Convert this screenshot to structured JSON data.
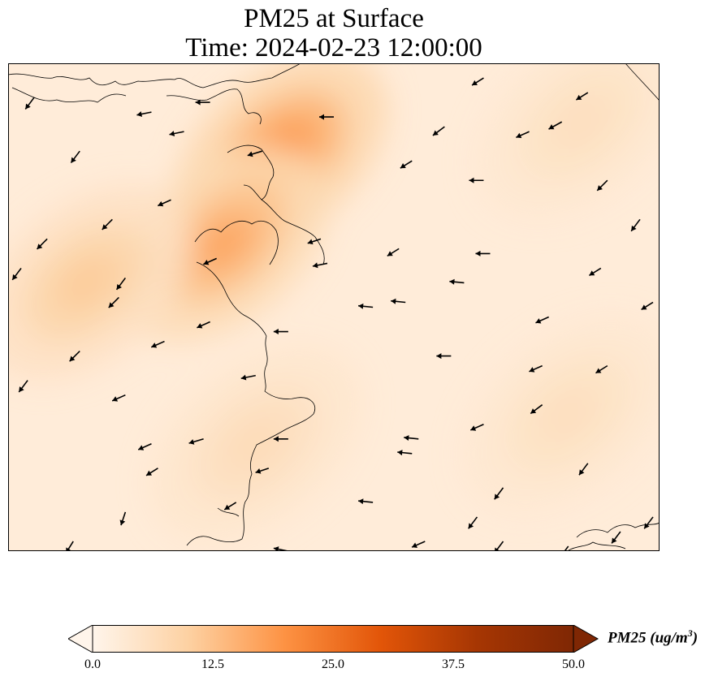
{
  "title": {
    "line1": "PM25 at Surface",
    "line2": "Time: 2024-02-23 12:00:00"
  },
  "colorbar": {
    "label_text": "PM25 (ug/m",
    "label_exp": "3",
    "label_close": ")",
    "ticks": [
      "0.0",
      "12.5",
      "25.0",
      "37.5",
      "50.0"
    ],
    "colors": [
      "#fff5eb",
      "#fdd1a2",
      "#fd9243",
      "#e25508",
      "#a63603",
      "#7f2704"
    ],
    "vmin": 0,
    "vmax": 50,
    "extend": "both"
  },
  "map": {
    "variable": "PM25",
    "level": "Surface",
    "hotspots": [
      {
        "lon": 0.42,
        "lat": 0.18,
        "value": 20
      },
      {
        "lon": 0.33,
        "lat": 0.37,
        "value": 17
      },
      {
        "lon": 0.12,
        "lat": 0.45,
        "value": 11
      },
      {
        "lon": 0.38,
        "lat": 0.78,
        "value": 7
      },
      {
        "lon": 0.86,
        "lat": 0.72,
        "value": 6
      },
      {
        "lon": 0.88,
        "lat": 0.12,
        "value": 6
      }
    ],
    "background_value": 2.5,
    "wind_vectors": [
      {
        "lon": 0.04,
        "lat": 0.07,
        "u": -0.6,
        "v": -0.8
      },
      {
        "lon": 0.22,
        "lat": 0.1,
        "u": -1.0,
        "v": -0.2
      },
      {
        "lon": 0.31,
        "lat": 0.08,
        "u": -1.0,
        "v": 0.0
      },
      {
        "lon": 0.5,
        "lat": 0.11,
        "u": -1.0,
        "v": 0.0
      },
      {
        "lon": 0.73,
        "lat": 0.03,
        "u": -0.8,
        "v": -0.5
      },
      {
        "lon": 0.89,
        "lat": 0.06,
        "u": -0.8,
        "v": -0.5
      },
      {
        "lon": 0.11,
        "lat": 0.18,
        "u": -0.6,
        "v": -0.8
      },
      {
        "lon": 0.27,
        "lat": 0.14,
        "u": -1.0,
        "v": -0.2
      },
      {
        "lon": 0.39,
        "lat": 0.18,
        "u": -1.0,
        "v": -0.3
      },
      {
        "lon": 0.67,
        "lat": 0.13,
        "u": -0.8,
        "v": -0.6
      },
      {
        "lon": 0.8,
        "lat": 0.14,
        "u": -0.9,
        "v": -0.4
      },
      {
        "lon": 0.85,
        "lat": 0.12,
        "u": -0.9,
        "v": -0.5
      },
      {
        "lon": 0.62,
        "lat": 0.2,
        "u": -0.8,
        "v": -0.5
      },
      {
        "lon": 0.73,
        "lat": 0.24,
        "u": -1.0,
        "v": 0.0
      },
      {
        "lon": 0.92,
        "lat": 0.24,
        "u": -0.7,
        "v": -0.7
      },
      {
        "lon": 0.25,
        "lat": 0.28,
        "u": -0.9,
        "v": -0.4
      },
      {
        "lon": 0.16,
        "lat": 0.32,
        "u": -0.7,
        "v": -0.7
      },
      {
        "lon": 0.06,
        "lat": 0.36,
        "u": -0.7,
        "v": -0.7
      },
      {
        "lon": 0.48,
        "lat": 0.36,
        "u": -0.9,
        "v": -0.3
      },
      {
        "lon": 0.6,
        "lat": 0.38,
        "u": -0.8,
        "v": -0.5
      },
      {
        "lon": 0.74,
        "lat": 0.39,
        "u": -1.0,
        "v": 0.0
      },
      {
        "lon": 0.97,
        "lat": 0.32,
        "u": -0.6,
        "v": -0.8
      },
      {
        "lon": 0.02,
        "lat": 0.42,
        "u": -0.6,
        "v": -0.8
      },
      {
        "lon": 0.18,
        "lat": 0.44,
        "u": -0.6,
        "v": -0.8
      },
      {
        "lon": 0.32,
        "lat": 0.4,
        "u": -0.9,
        "v": -0.4
      },
      {
        "lon": 0.49,
        "lat": 0.41,
        "u": -1.0,
        "v": -0.2
      },
      {
        "lon": 0.7,
        "lat": 0.45,
        "u": -1.0,
        "v": 0.1
      },
      {
        "lon": 0.91,
        "lat": 0.42,
        "u": -0.8,
        "v": -0.5
      },
      {
        "lon": 0.17,
        "lat": 0.48,
        "u": -0.7,
        "v": -0.7
      },
      {
        "lon": 0.56,
        "lat": 0.5,
        "u": -1.0,
        "v": 0.1
      },
      {
        "lon": 0.61,
        "lat": 0.49,
        "u": -1.0,
        "v": 0.1
      },
      {
        "lon": 0.83,
        "lat": 0.52,
        "u": -0.9,
        "v": -0.4
      },
      {
        "lon": 0.99,
        "lat": 0.49,
        "u": -0.8,
        "v": -0.5
      },
      {
        "lon": 0.31,
        "lat": 0.53,
        "u": -0.9,
        "v": -0.4
      },
      {
        "lon": 0.24,
        "lat": 0.57,
        "u": -0.9,
        "v": -0.4
      },
      {
        "lon": 0.43,
        "lat": 0.55,
        "u": -1.0,
        "v": 0.0
      },
      {
        "lon": 0.11,
        "lat": 0.59,
        "u": -0.7,
        "v": -0.7
      },
      {
        "lon": 0.68,
        "lat": 0.6,
        "u": -1.0,
        "v": 0.0
      },
      {
        "lon": 0.82,
        "lat": 0.62,
        "u": -0.9,
        "v": -0.4
      },
      {
        "lon": 0.92,
        "lat": 0.62,
        "u": -0.8,
        "v": -0.5
      },
      {
        "lon": 0.03,
        "lat": 0.65,
        "u": -0.6,
        "v": -0.8
      },
      {
        "lon": 0.38,
        "lat": 0.64,
        "u": -1.0,
        "v": -0.2
      },
      {
        "lon": 0.18,
        "lat": 0.68,
        "u": -0.9,
        "v": -0.4
      },
      {
        "lon": 0.82,
        "lat": 0.7,
        "u": -0.8,
        "v": -0.6
      },
      {
        "lon": 0.3,
        "lat": 0.77,
        "u": -1.0,
        "v": -0.3
      },
      {
        "lon": 0.43,
        "lat": 0.77,
        "u": -1.0,
        "v": 0.0
      },
      {
        "lon": 0.73,
        "lat": 0.74,
        "u": -0.9,
        "v": -0.4
      },
      {
        "lon": 0.22,
        "lat": 0.78,
        "u": -0.9,
        "v": -0.4
      },
      {
        "lon": 0.63,
        "lat": 0.77,
        "u": -1.0,
        "v": 0.1
      },
      {
        "lon": 0.62,
        "lat": 0.8,
        "u": -1.0,
        "v": 0.1
      },
      {
        "lon": 0.23,
        "lat": 0.83,
        "u": -0.8,
        "v": -0.5
      },
      {
        "lon": 0.4,
        "lat": 0.83,
        "u": -0.9,
        "v": -0.3
      },
      {
        "lon": 0.89,
        "lat": 0.82,
        "u": -0.6,
        "v": -0.8
      },
      {
        "lon": 0.76,
        "lat": 0.87,
        "u": -0.6,
        "v": -0.8
      },
      {
        "lon": 0.35,
        "lat": 0.9,
        "u": -0.8,
        "v": -0.5
      },
      {
        "lon": 0.56,
        "lat": 0.9,
        "u": -1.0,
        "v": 0.1
      },
      {
        "lon": 0.18,
        "lat": 0.92,
        "u": -0.3,
        "v": -0.9
      },
      {
        "lon": 0.72,
        "lat": 0.93,
        "u": -0.6,
        "v": -0.8
      },
      {
        "lon": 0.99,
        "lat": 0.93,
        "u": -0.6,
        "v": -0.8
      },
      {
        "lon": 0.1,
        "lat": 0.98,
        "u": -0.5,
        "v": -0.8
      },
      {
        "lon": 0.64,
        "lat": 0.98,
        "u": -0.9,
        "v": -0.4
      },
      {
        "lon": 0.43,
        "lat": 1.0,
        "u": -1.0,
        "v": 0.2
      },
      {
        "lon": 0.76,
        "lat": 0.98,
        "u": -0.6,
        "v": -0.8
      },
      {
        "lon": 0.86,
        "lat": 0.99,
        "u": -0.6,
        "v": -0.8
      },
      {
        "lon": 0.94,
        "lat": 0.96,
        "u": -0.6,
        "v": -0.8
      }
    ]
  }
}
